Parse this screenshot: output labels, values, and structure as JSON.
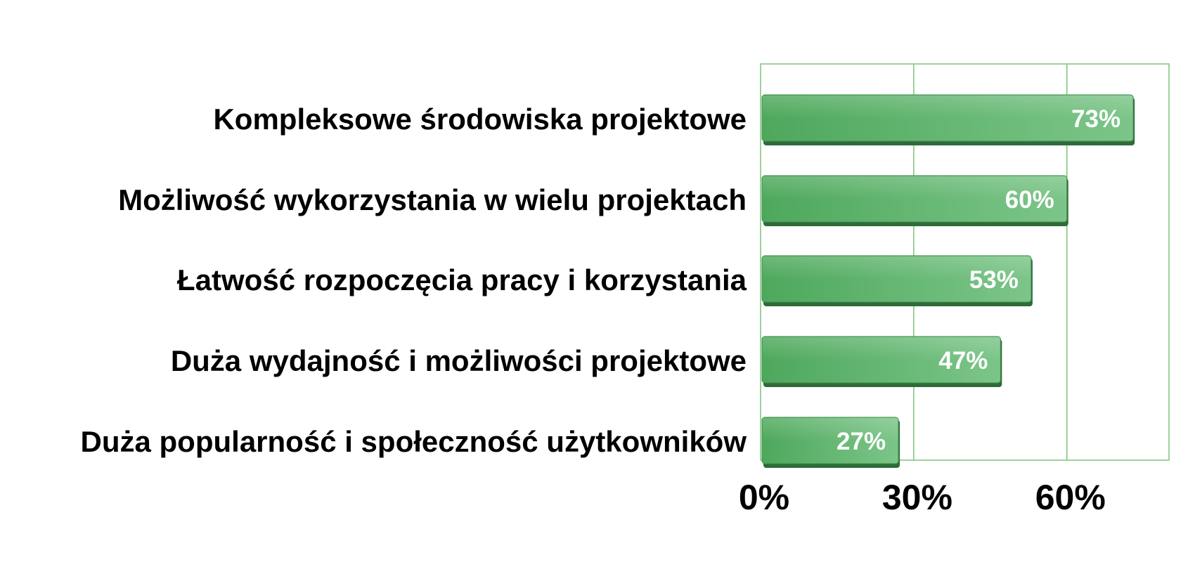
{
  "chart_data": {
    "type": "bar",
    "orientation": "horizontal",
    "categories": [
      "Kompleksowe środowiska projektowe",
      "Możliwość wykorzystania w wielu projektach",
      "Łatwość rozpoczęcia pracy i korzystania",
      "Duża wydajność i możliwości projektowe",
      "Duża popularność i społeczność użytkowników"
    ],
    "values": [
      73,
      60,
      53,
      47,
      27
    ],
    "data_labels": [
      "73%",
      "60%",
      "53%",
      "47%",
      "27%"
    ],
    "xlim": [
      0,
      80
    ],
    "xticks": [
      0,
      30,
      60
    ],
    "xtick_labels": [
      "0%",
      "30%",
      "60%"
    ],
    "grid": true,
    "colors": {
      "bar": "#5cb26a",
      "bar_highlight": "#7cc589",
      "bar_shadow": "#2f6b3a",
      "grid": "#7cc47a",
      "frame": "#7cc47a",
      "data_label": "#ffffff",
      "text": "#000000"
    }
  }
}
